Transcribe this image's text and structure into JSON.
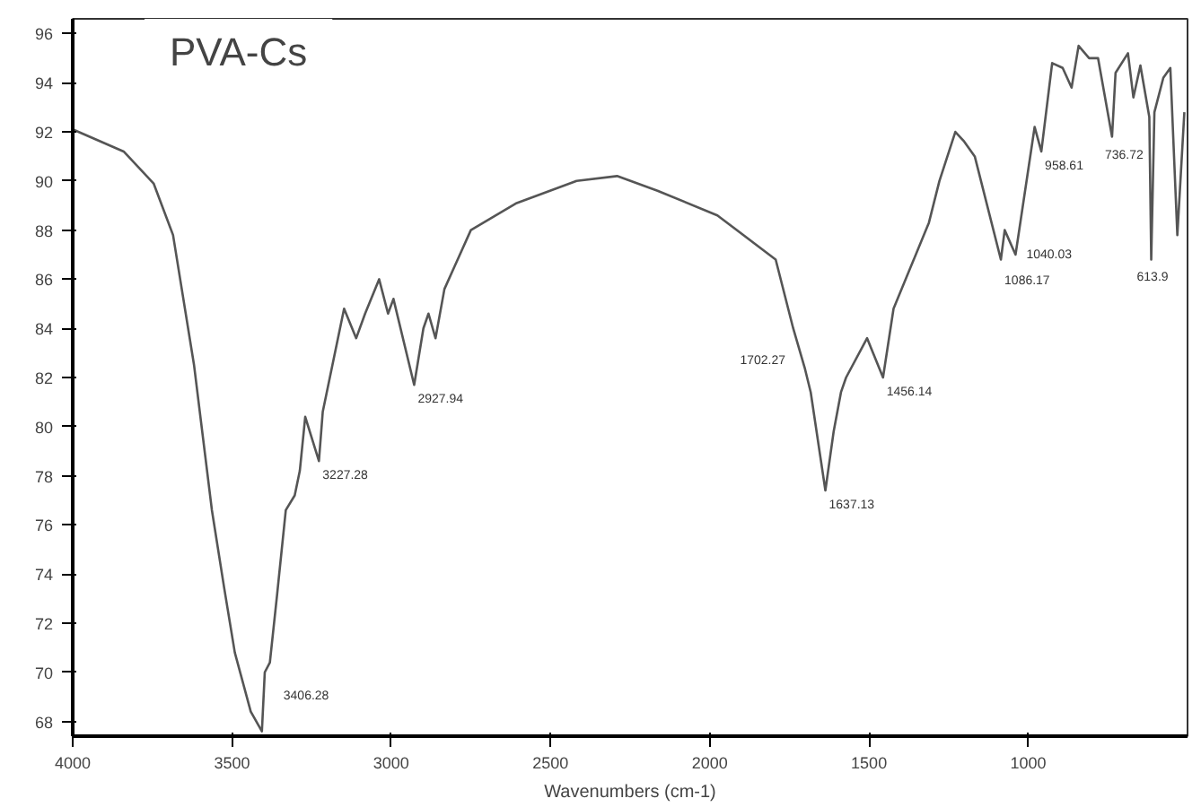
{
  "chart_data": {
    "type": "line",
    "title": "PVA-Cs",
    "xlabel": "Wavenumbers (cm-1)",
    "x": [
      4000,
      3840,
      3746,
      3685,
      3619,
      3563,
      3524,
      3491,
      3441,
      3406,
      3397,
      3381,
      3358,
      3331,
      3303,
      3287,
      3270,
      3227,
      3215,
      3148,
      3110,
      3082,
      3038,
      3010,
      2993,
      2928,
      2899,
      2883,
      2861,
      2833,
      2750,
      2606,
      2418,
      2291,
      2164,
      1976,
      1793,
      1738,
      1702,
      1683,
      1637,
      1611,
      1588,
      1572,
      1506,
      1456,
      1423,
      1312,
      1279,
      1229,
      1201,
      1168,
      1086,
      1074,
      1040,
      980,
      959,
      925,
      892,
      864,
      842,
      809,
      781,
      737,
      726,
      687,
      670,
      648,
      620,
      614,
      604,
      576,
      554,
      532,
      510
    ],
    "series": [
      {
        "color": "#555555",
        "values": [
          92.1,
          91.2,
          89.9,
          87.8,
          82.5,
          76.6,
          73.4,
          70.8,
          68.4,
          67.6,
          70.0,
          70.4,
          73.2,
          76.6,
          77.2,
          78.2,
          80.4,
          78.6,
          80.6,
          84.8,
          83.6,
          84.6,
          86.0,
          84.6,
          85.2,
          81.7,
          84.0,
          84.6,
          83.6,
          85.6,
          88.0,
          89.1,
          90.0,
          90.2,
          89.6,
          88.6,
          86.8,
          84.0,
          82.4,
          81.4,
          77.4,
          79.8,
          81.4,
          82.0,
          83.6,
          82.0,
          84.8,
          88.3,
          90.0,
          92.0,
          91.6,
          91.0,
          86.8,
          88.0,
          87.0,
          92.2,
          91.2,
          94.8,
          94.6,
          93.8,
          95.5,
          95.0,
          95.0,
          91.8,
          94.4,
          95.2,
          93.4,
          94.7,
          92.6,
          86.8,
          92.8,
          94.2,
          94.6,
          87.8,
          92.8
        ]
      }
    ],
    "xlim": [
      4000,
      500
    ],
    "ylim": [
      67.4,
      96.6
    ],
    "xticks": [
      4000,
      3500,
      3000,
      2500,
      2000,
      1500,
      1000
    ],
    "yticks": [
      68,
      70,
      72,
      74,
      76,
      78,
      80,
      82,
      84,
      86,
      88,
      90,
      92,
      94,
      96
    ],
    "grid": false,
    "marker": "none",
    "line_style": "solid",
    "annotations": [
      {
        "text": "3406.28",
        "x": 3406,
        "y": 67.6
      },
      {
        "text": "3227.28",
        "x": 3227,
        "y": 78.6
      },
      {
        "text": "2927.94",
        "x": 2928,
        "y": 81.7
      },
      {
        "text": "1702.27",
        "x": 1702,
        "y": 82.4
      },
      {
        "text": "1637.13",
        "x": 1637,
        "y": 77.4
      },
      {
        "text": "1456.14",
        "x": 1456,
        "y": 82.0
      },
      {
        "text": "1086.17",
        "x": 1086,
        "y": 86.8
      },
      {
        "text": "1040.03",
        "x": 1040,
        "y": 87.0
      },
      {
        "text": "958.61",
        "x": 959,
        "y": 91.2
      },
      {
        "text": "736.72",
        "x": 737,
        "y": 91.8
      },
      {
        "text": "613.9",
        "x": 614,
        "y": 86.8
      }
    ]
  }
}
